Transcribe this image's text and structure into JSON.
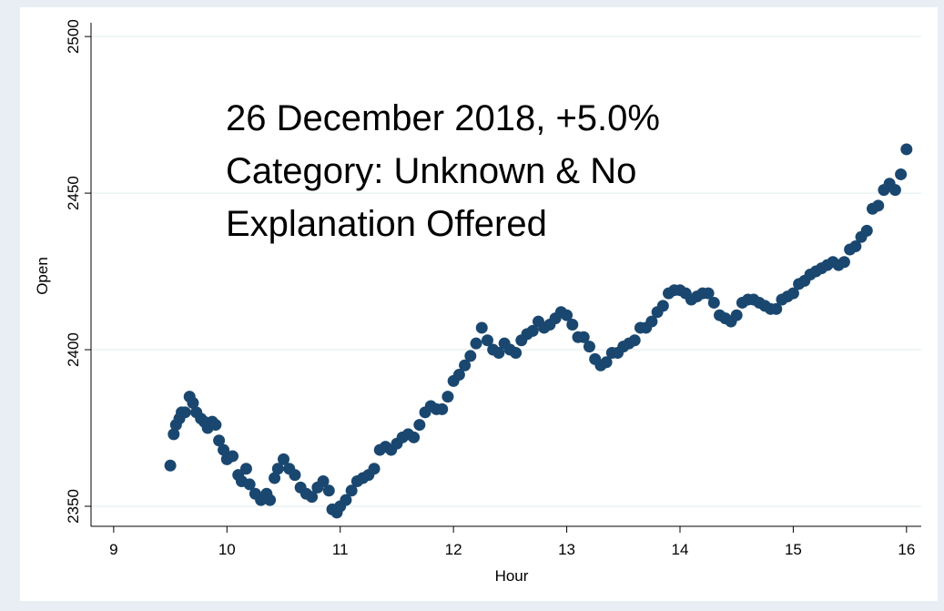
{
  "chart_data": {
    "type": "scatter",
    "annotation": [
      "26 December 2018, +5.0%",
      "Category: Unknown & No",
      "Explanation Offered"
    ],
    "xlabel": "Hour",
    "ylabel": "Open",
    "color": "#1a476f",
    "grid": true,
    "xlim": [
      8.8,
      16.13
    ],
    "ylim": [
      2343.6,
      2504.4
    ],
    "xticks": [
      9,
      10,
      11,
      12,
      13,
      14,
      15,
      16
    ],
    "yticks": [
      2350,
      2400,
      2450,
      2500
    ],
    "x": [
      9.5,
      9.53,
      9.55,
      9.58,
      9.6,
      9.63,
      9.67,
      9.7,
      9.73,
      9.77,
      9.8,
      9.83,
      9.87,
      9.9,
      9.93,
      9.97,
      10.0,
      10.05,
      10.1,
      10.13,
      10.17,
      10.2,
      10.25,
      10.3,
      10.35,
      10.38,
      10.42,
      10.45,
      10.5,
      10.55,
      10.6,
      10.65,
      10.7,
      10.75,
      10.8,
      10.85,
      10.9,
      10.93,
      10.97,
      11.0,
      11.05,
      11.1,
      11.15,
      11.2,
      11.25,
      11.3,
      11.35,
      11.4,
      11.45,
      11.5,
      11.55,
      11.6,
      11.65,
      11.7,
      11.75,
      11.8,
      11.85,
      11.9,
      11.95,
      12.0,
      12.05,
      12.1,
      12.15,
      12.2,
      12.25,
      12.3,
      12.35,
      12.4,
      12.45,
      12.5,
      12.55,
      12.6,
      12.65,
      12.7,
      12.75,
      12.8,
      12.85,
      12.9,
      12.95,
      13.0,
      13.05,
      13.1,
      13.15,
      13.2,
      13.25,
      13.3,
      13.35,
      13.4,
      13.45,
      13.5,
      13.55,
      13.6,
      13.65,
      13.7,
      13.75,
      13.8,
      13.85,
      13.9,
      13.95,
      14.0,
      14.05,
      14.1,
      14.15,
      14.2,
      14.25,
      14.3,
      14.35,
      14.4,
      14.45,
      14.5,
      14.55,
      14.6,
      14.65,
      14.7,
      14.75,
      14.8,
      14.85,
      14.9,
      14.95,
      15.0,
      15.05,
      15.1,
      15.15,
      15.2,
      15.25,
      15.3,
      15.35,
      15.4,
      15.45,
      15.5,
      15.55,
      15.6,
      15.65,
      15.7,
      15.75,
      15.8,
      15.85,
      15.9,
      15.95,
      16.0
    ],
    "values": [
      2363,
      2373,
      2376,
      2378,
      2380,
      2380,
      2385,
      2383,
      2380,
      2378,
      2377,
      2375,
      2377,
      2376,
      2371,
      2368,
      2365,
      2366,
      2360,
      2358,
      2362,
      2357,
      2354,
      2352,
      2354,
      2352,
      2359,
      2362,
      2365,
      2362,
      2360,
      2356,
      2354,
      2353,
      2356,
      2358,
      2355,
      2349,
      2348,
      2350,
      2352,
      2355,
      2358,
      2359,
      2360,
      2362,
      2368,
      2369,
      2368,
      2370,
      2372,
      2373,
      2372,
      2376,
      2380,
      2382,
      2381,
      2381,
      2385,
      2390,
      2392,
      2395,
      2398,
      2402,
      2407,
      2403,
      2400,
      2399,
      2402,
      2400,
      2399,
      2403,
      2405,
      2406,
      2409,
      2407,
      2408,
      2410,
      2412,
      2411,
      2408,
      2404,
      2404,
      2401,
      2397,
      2395,
      2396,
      2399,
      2399,
      2401,
      2402,
      2403,
      2407,
      2407,
      2409,
      2412,
      2414,
      2418,
      2419,
      2419,
      2418,
      2416,
      2417,
      2418,
      2418,
      2415,
      2411,
      2410,
      2409,
      2411,
      2415,
      2416,
      2416,
      2415,
      2414,
      2413,
      2413,
      2416,
      2417,
      2418,
      2421,
      2422,
      2424,
      2425,
      2426,
      2427,
      2428,
      2427,
      2428,
      2432,
      2433,
      2436,
      2438,
      2445,
      2446,
      2451,
      2453,
      2451,
      2456,
      2464
    ]
  }
}
